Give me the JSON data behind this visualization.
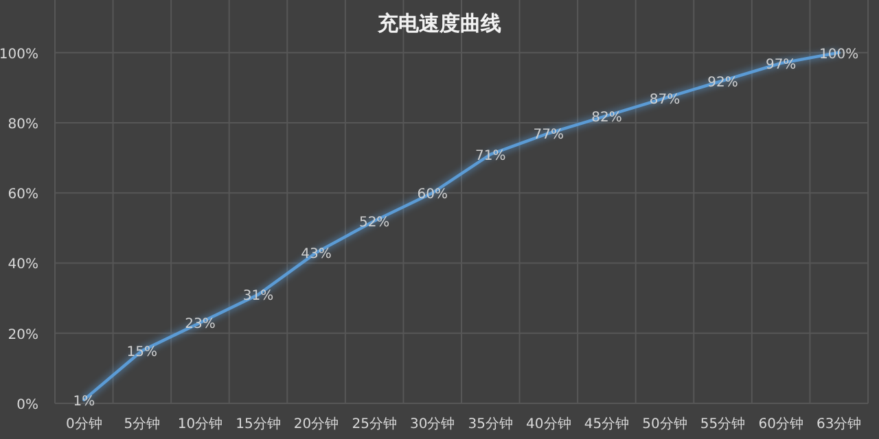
{
  "chart_data": {
    "type": "line",
    "title": "充电速度曲线",
    "categories": [
      "0分钟",
      "5分钟",
      "10分钟",
      "15分钟",
      "20分钟",
      "25分钟",
      "30分钟",
      "35分钟",
      "40分钟",
      "45分钟",
      "50分钟",
      "55分钟",
      "60分钟",
      "63分钟"
    ],
    "series": [
      {
        "color": "#5b9bd5",
        "values": [
          1,
          15,
          23,
          31,
          43,
          52,
          60,
          71,
          77,
          82,
          87,
          92,
          97,
          100
        ],
        "value_labels": [
          "1%",
          "15%",
          "23%",
          "31%",
          "43%",
          "52%",
          "60%",
          "71%",
          "77%",
          "82%",
          "87%",
          "92%",
          "97%",
          "100%"
        ]
      }
    ],
    "ylim": [
      0,
      115
    ],
    "yticks": [
      {
        "value": 0,
        "label": "0%"
      },
      {
        "value": 20,
        "label": "20%"
      },
      {
        "value": 40,
        "label": "40%"
      },
      {
        "value": 60,
        "label": "60%"
      },
      {
        "value": 80,
        "label": "80%"
      },
      {
        "value": 100,
        "label": "100%"
      }
    ],
    "grid": true,
    "marker": "none",
    "line_style": "solid"
  }
}
